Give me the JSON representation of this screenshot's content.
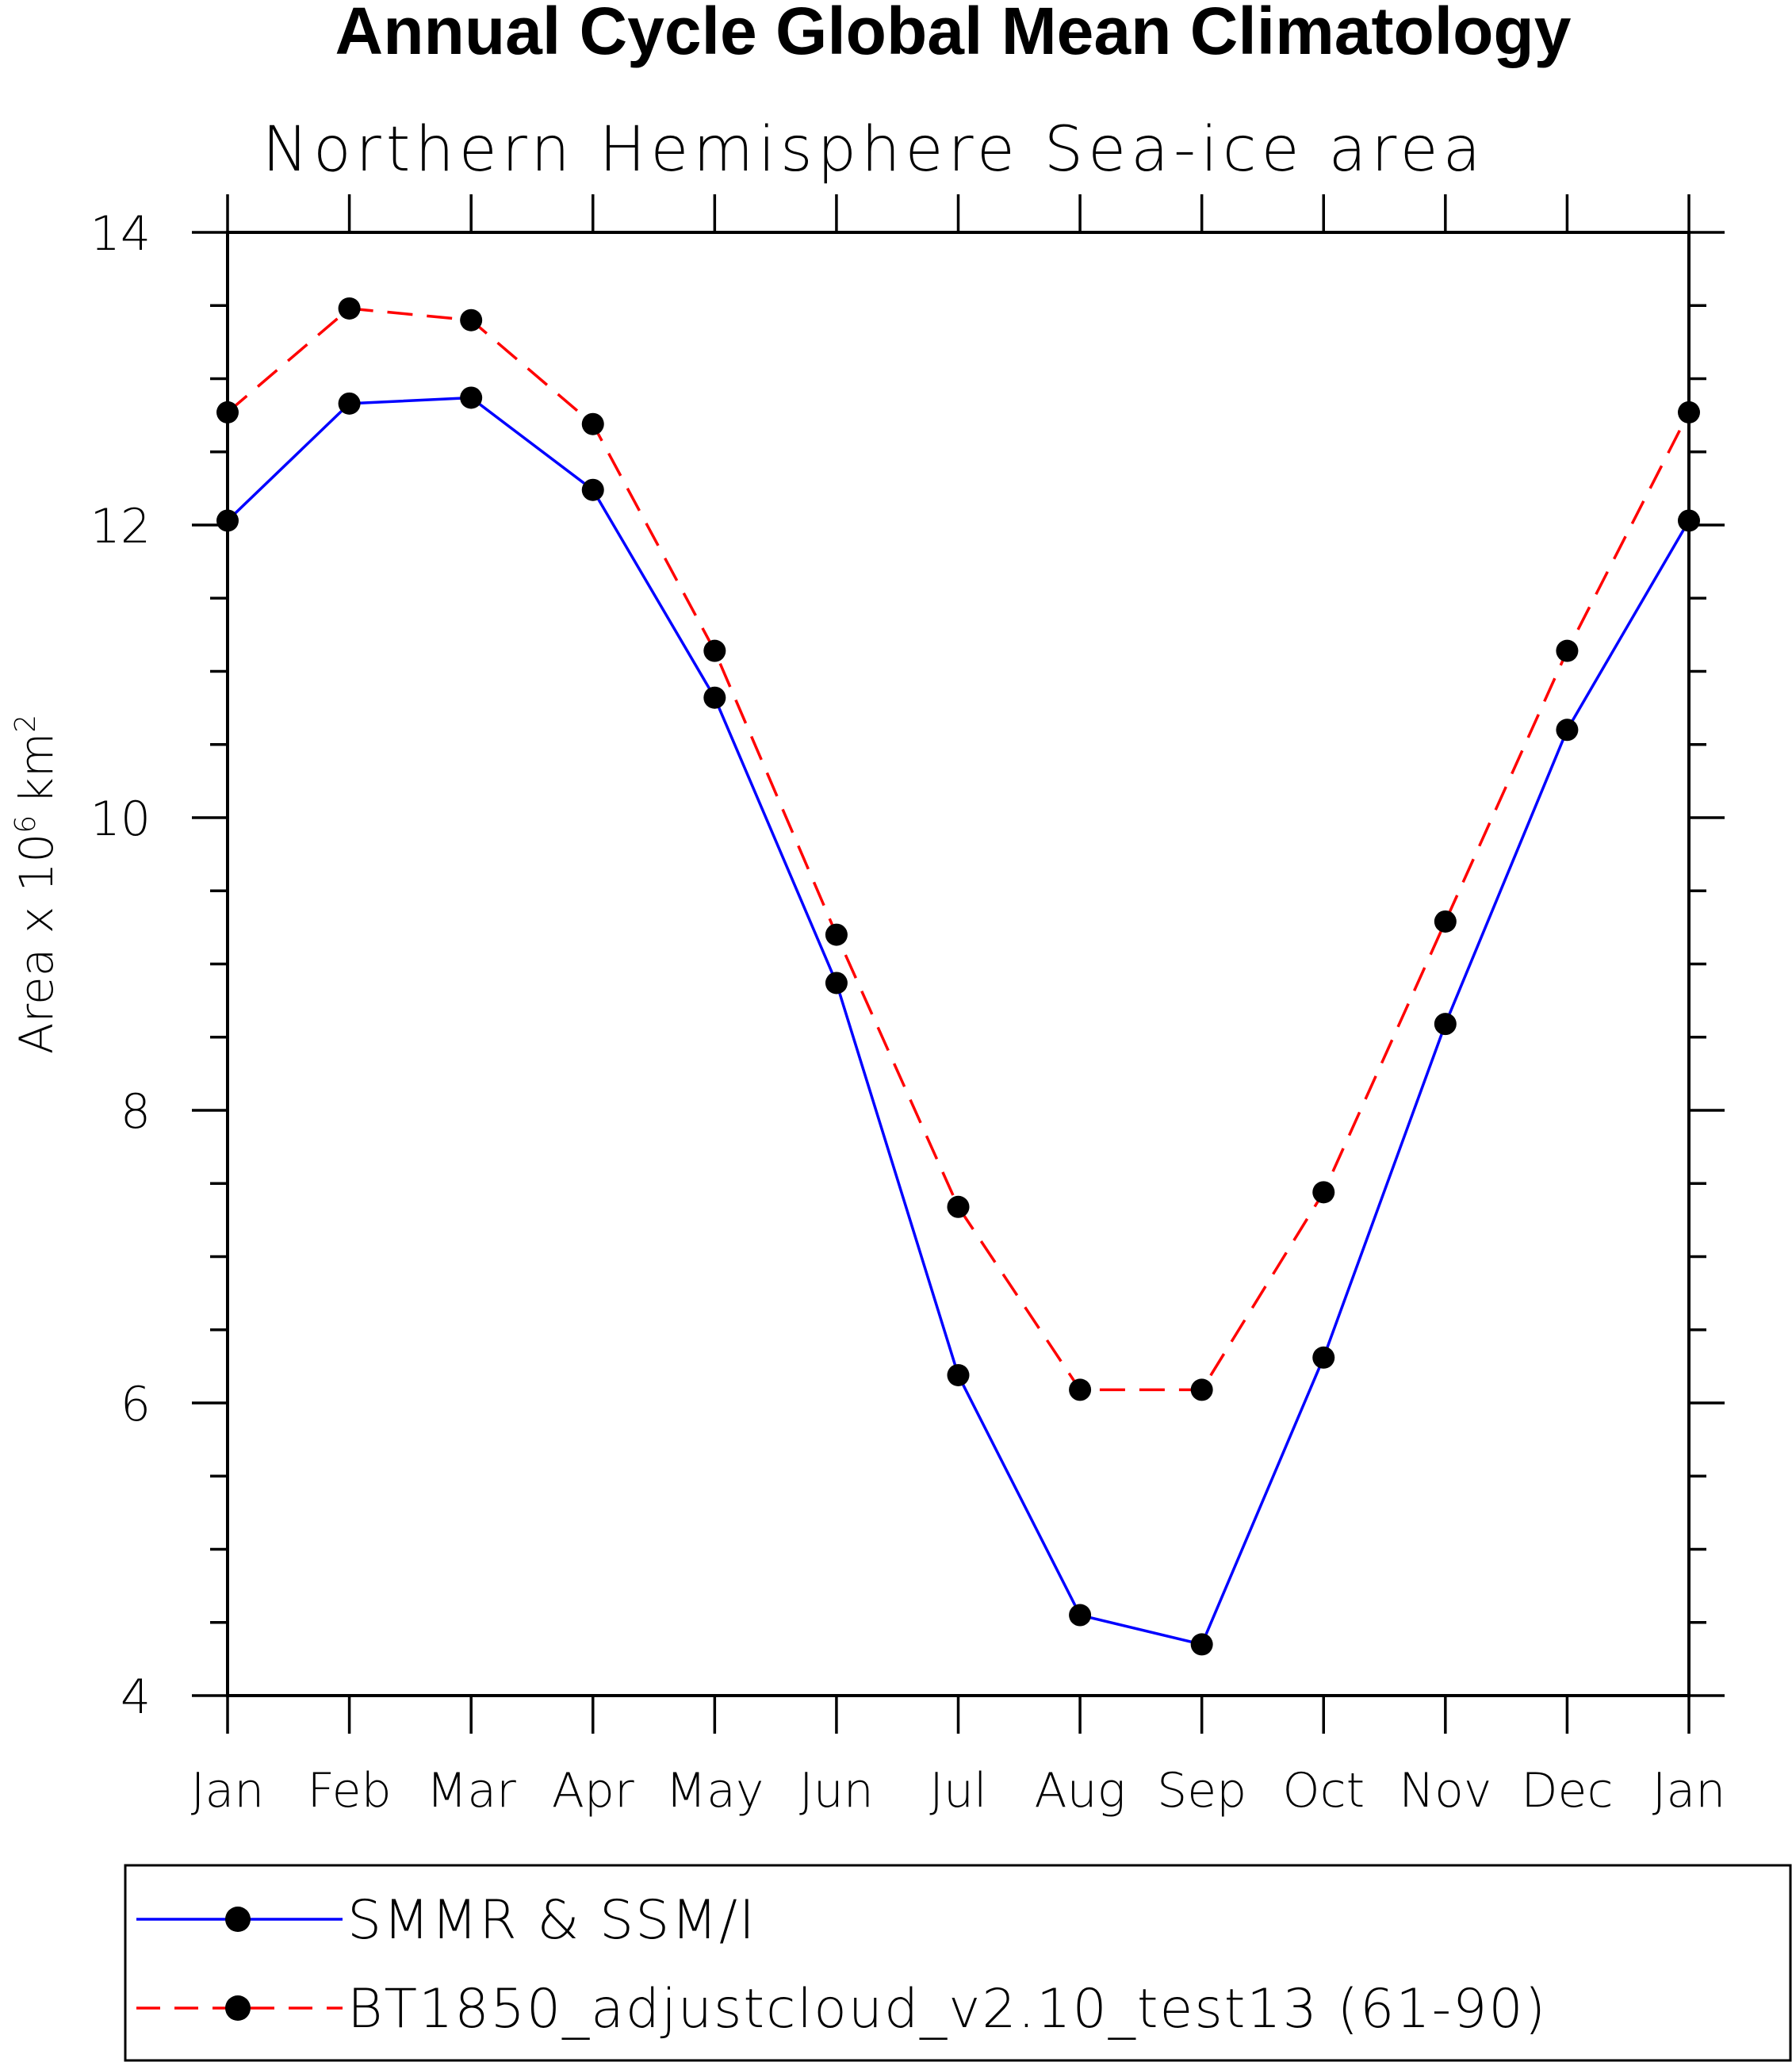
{
  "chart_data": {
    "type": "line",
    "title": "Annual Cycle Global Mean Climatology",
    "subtitle": "Northern Hemisphere Sea-ice area",
    "ylabel": "Area x 10",
    "ylabel_exponent": "6",
    "ylabel_unit": "km",
    "ylabel_unit_exponent": "2",
    "xlabel": "",
    "categories": [
      "Jan",
      "Feb",
      "Mar",
      "Apr",
      "May",
      "Jun",
      "Jul",
      "Aug",
      "Sep",
      "Oct",
      "Nov",
      "Dec",
      "Jan"
    ],
    "ylim": [
      4,
      14
    ],
    "yticks": [
      4,
      6,
      8,
      10,
      12,
      14
    ],
    "yminor_step": 0.5,
    "series": [
      {
        "name": "SMMR & SSM/I",
        "color": "#0000ff",
        "dash": "solid",
        "values": [
          12.03,
          12.83,
          12.87,
          12.24,
          10.82,
          8.87,
          6.19,
          4.55,
          4.35,
          6.31,
          8.59,
          10.6,
          12.03
        ]
      },
      {
        "name": "BT1850_adjustcloud_v2.10_test13 (61-90)",
        "color": "#ff0000",
        "dash": "dashed",
        "values": [
          12.77,
          13.48,
          13.4,
          12.69,
          11.14,
          9.2,
          7.34,
          6.09,
          6.09,
          7.44,
          9.29,
          11.14,
          12.77
        ]
      }
    ],
    "grid": false,
    "legend_position": "bottom"
  }
}
